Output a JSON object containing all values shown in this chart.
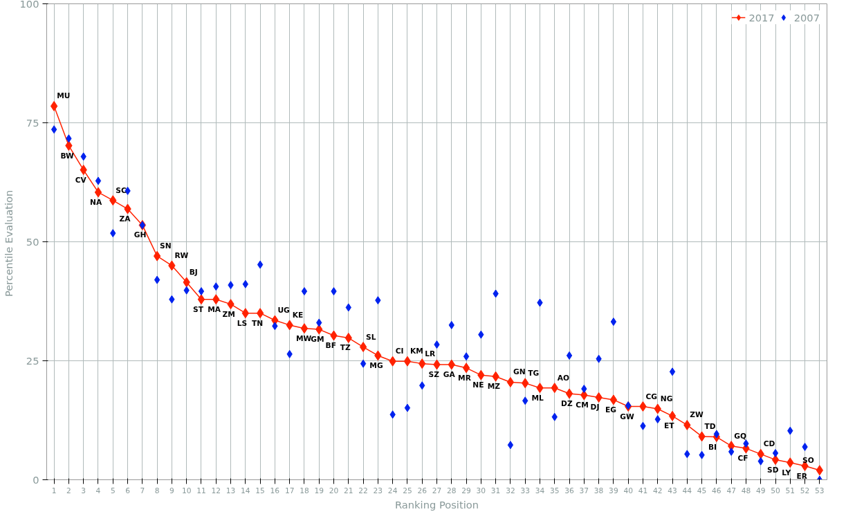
{
  "chart_data": {
    "type": "line",
    "xlabel": "Ranking Position",
    "ylabel": "Percentile  Evaluation",
    "x": [
      1,
      2,
      3,
      4,
      5,
      6,
      7,
      8,
      9,
      10,
      11,
      12,
      13,
      14,
      15,
      16,
      17,
      18,
      19,
      20,
      21,
      22,
      23,
      24,
      25,
      26,
      27,
      28,
      29,
      30,
      31,
      32,
      33,
      34,
      35,
      36,
      37,
      38,
      39,
      40,
      41,
      42,
      43,
      44,
      45,
      46,
      47,
      48,
      49,
      50,
      51,
      52,
      53
    ],
    "series": [
      {
        "name": "2017",
        "color": "#ff2200",
        "marker": "diamond",
        "values": [
          78.5,
          70.2,
          65.1,
          60.4,
          58.7,
          56.9,
          53.5,
          47.0,
          45.0,
          41.5,
          37.9,
          37.9,
          36.9,
          35.0,
          35.0,
          33.5,
          32.5,
          31.8,
          31.6,
          30.3,
          29.8,
          27.9,
          26.1,
          24.9,
          24.9,
          24.4,
          24.2,
          24.2,
          23.5,
          22.0,
          21.7,
          20.5,
          20.3,
          19.3,
          19.3,
          18.1,
          17.8,
          17.3,
          16.8,
          15.4,
          15.4,
          14.9,
          13.4,
          11.5,
          9.1,
          9.0,
          7.1,
          6.6,
          5.4,
          4.2,
          3.6,
          2.9,
          2.0
        ]
      },
      {
        "name": "2007",
        "type": "scatter",
        "color": "#0022ee",
        "marker": "diamond",
        "values": [
          73.6,
          71.7,
          67.9,
          62.8,
          51.8,
          60.7,
          53.5,
          42.0,
          37.9,
          39.8,
          39.6,
          40.6,
          40.9,
          41.1,
          45.2,
          32.3,
          26.4,
          39.6,
          33.0,
          39.6,
          36.2,
          24.4,
          37.7,
          13.7,
          15.1,
          19.8,
          28.4,
          32.5,
          25.9,
          30.5,
          39.1,
          7.3,
          16.6,
          37.2,
          13.2,
          26.1,
          19.1,
          25.4,
          33.2,
          15.6,
          11.3,
          12.7,
          22.7,
          5.4,
          5.2,
          9.6,
          5.9,
          7.6,
          3.9,
          5.6,
          10.3,
          6.9,
          0.0
        ]
      }
    ],
    "annotations": [
      {
        "text": "MU",
        "x": 1,
        "y": 78.5
      },
      {
        "text": "BW",
        "x": 2,
        "y": 70.2
      },
      {
        "text": "CV",
        "x": 3,
        "y": 65.1
      },
      {
        "text": "NA",
        "x": 4,
        "y": 60.4
      },
      {
        "text": "SC",
        "x": 5,
        "y": 58.7
      },
      {
        "text": "ZA",
        "x": 6,
        "y": 56.9
      },
      {
        "text": "GH",
        "x": 7,
        "y": 53.5
      },
      {
        "text": "SN",
        "x": 8,
        "y": 47.0
      },
      {
        "text": "RW",
        "x": 9,
        "y": 45.0
      },
      {
        "text": "BJ",
        "x": 10,
        "y": 41.5
      },
      {
        "text": "ST",
        "x": 11,
        "y": 37.9
      },
      {
        "text": "MA",
        "x": 12,
        "y": 37.9
      },
      {
        "text": "ZM",
        "x": 13,
        "y": 36.9
      },
      {
        "text": "LS",
        "x": 14,
        "y": 35.0
      },
      {
        "text": "TN",
        "x": 15,
        "y": 35.0
      },
      {
        "text": "UG",
        "x": 16,
        "y": 33.5
      },
      {
        "text": "KE",
        "x": 17,
        "y": 32.5
      },
      {
        "text": "MW",
        "x": 18,
        "y": 31.8
      },
      {
        "text": "GM",
        "x": 19,
        "y": 31.6
      },
      {
        "text": "BF",
        "x": 20,
        "y": 30.3
      },
      {
        "text": "TZ",
        "x": 21,
        "y": 29.8
      },
      {
        "text": "SL",
        "x": 22,
        "y": 27.9
      },
      {
        "text": "MG",
        "x": 23,
        "y": 26.1
      },
      {
        "text": "CI",
        "x": 24,
        "y": 24.9
      },
      {
        "text": "KM",
        "x": 25,
        "y": 24.9
      },
      {
        "text": "LR",
        "x": 26,
        "y": 24.4
      },
      {
        "text": "SZ",
        "x": 27,
        "y": 24.2
      },
      {
        "text": "GA",
        "x": 28,
        "y": 24.2
      },
      {
        "text": "MR",
        "x": 29,
        "y": 23.5
      },
      {
        "text": "NE",
        "x": 30,
        "y": 22.0
      },
      {
        "text": "MZ",
        "x": 31,
        "y": 21.7
      },
      {
        "text": "GN",
        "x": 32,
        "y": 20.5
      },
      {
        "text": "TG",
        "x": 33,
        "y": 20.3
      },
      {
        "text": "ML",
        "x": 34,
        "y": 19.3
      },
      {
        "text": "AO",
        "x": 35,
        "y": 19.3
      },
      {
        "text": "DZ",
        "x": 36,
        "y": 18.1
      },
      {
        "text": "CM",
        "x": 37,
        "y": 17.8
      },
      {
        "text": "DJ",
        "x": 38,
        "y": 17.3
      },
      {
        "text": "EG",
        "x": 39,
        "y": 16.8
      },
      {
        "text": "GW",
        "x": 40,
        "y": 15.4
      },
      {
        "text": "CG",
        "x": 41,
        "y": 15.4
      },
      {
        "text": "NG",
        "x": 42,
        "y": 14.9
      },
      {
        "text": "ET",
        "x": 43,
        "y": 13.4
      },
      {
        "text": "ZW",
        "x": 44,
        "y": 11.5
      },
      {
        "text": "TD",
        "x": 45,
        "y": 9.1
      },
      {
        "text": "BI",
        "x": 46,
        "y": 9.0
      },
      {
        "text": "GQ",
        "x": 47,
        "y": 7.1
      },
      {
        "text": "CF",
        "x": 48,
        "y": 6.6
      },
      {
        "text": "CD",
        "x": 49,
        "y": 5.4
      },
      {
        "text": "SD",
        "x": 50,
        "y": 4.2
      },
      {
        "text": "LY",
        "x": 51,
        "y": 3.6
      },
      {
        "text": "ER",
        "x": 52,
        "y": 2.9
      },
      {
        "text": "SO",
        "x": 53,
        "y": 2.0
      }
    ],
    "xlim": [
      0.5,
      53.5
    ],
    "xticks": [
      1,
      2,
      3,
      4,
      5,
      6,
      7,
      8,
      9,
      10,
      11,
      12,
      13,
      14,
      15,
      16,
      17,
      18,
      19,
      20,
      21,
      22,
      23,
      24,
      25,
      26,
      27,
      28,
      29,
      30,
      31,
      32,
      33,
      34,
      35,
      36,
      37,
      38,
      39,
      40,
      41,
      42,
      43,
      44,
      45,
      46,
      47,
      48,
      49,
      50,
      51,
      52,
      53
    ],
    "ylim": [
      0,
      100
    ],
    "yticks": [
      0,
      25,
      50,
      75,
      100
    ],
    "grid": true,
    "legend": "top right"
  }
}
